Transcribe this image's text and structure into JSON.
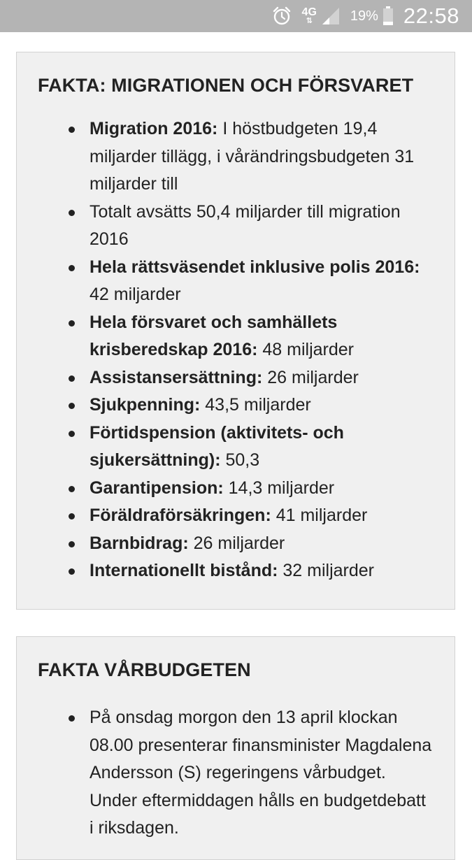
{
  "status_bar": {
    "network": "4G",
    "battery_percent": "19%",
    "time": "22:58",
    "icons": [
      "alarm-clock-icon",
      "network-arrows-icon",
      "signal-icon",
      "battery-icon"
    ]
  },
  "card_migration": {
    "title": "FAKTA: MIGRATIONEN OCH FÖRSVARET",
    "items": [
      {
        "bold": "Migration 2016:",
        "text": " I höstbudgeten 19,4 miljarder tillägg, i vårändringsbudgeten 31 miljarder till"
      },
      {
        "bold": "",
        "text": "Totalt avsätts 50,4 miljarder till migration 2016"
      },
      {
        "bold": "Hela rättsväsendet inklusive polis 2016:",
        "text": " 42 miljarder"
      },
      {
        "bold": "Hela försvaret och samhällets krisberedskap 2016:",
        "text": " 48 miljarder"
      },
      {
        "bold": "Assistansersättning:",
        "text": " 26 miljarder"
      },
      {
        "bold": "Sjukpenning:",
        "text": " 43,5 miljarder"
      },
      {
        "bold": "Förtidspension (aktivitets- och sjukersättning):",
        "text": " 50,3"
      },
      {
        "bold": "Garantipension:",
        "text": " 14,3 miljarder"
      },
      {
        "bold": "Föräldraförsäkringen:",
        "text": " 41 miljarder"
      },
      {
        "bold": "Barnbidrag:",
        "text": " 26 miljarder"
      },
      {
        "bold": "Internationellt bistånd:",
        "text": " 32 miljarder"
      }
    ]
  },
  "card_varbudget": {
    "title": "FAKTA VÅRBUDGETEN",
    "items": [
      {
        "bold": "",
        "text": "På onsdag morgon den 13 april klockan 08.00 presenterar finansminister Magdalena Andersson (S) regeringens vårbudget. Under eftermiddagen hålls en budgetdebatt i riksdagen."
      }
    ]
  }
}
